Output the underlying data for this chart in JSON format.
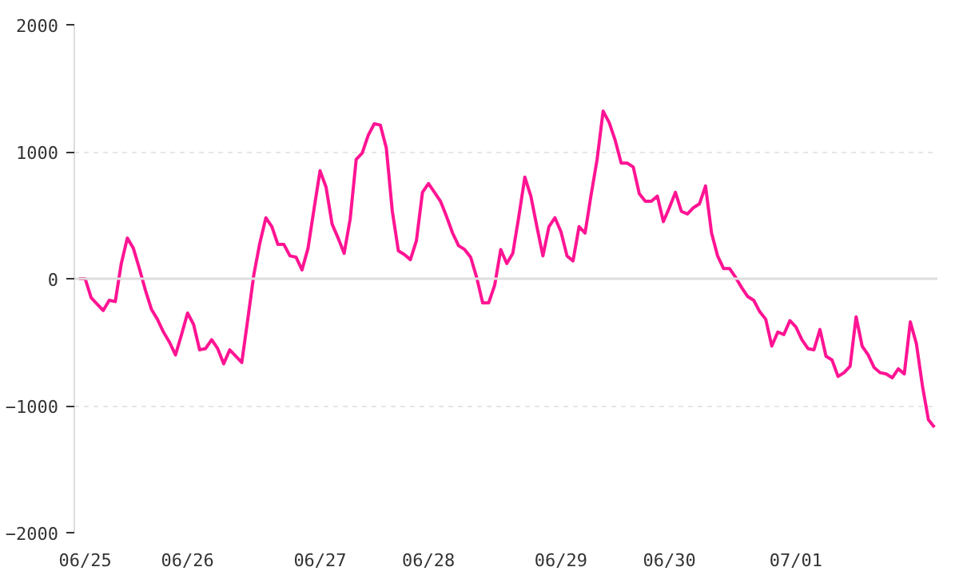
{
  "chart_data": {
    "type": "line",
    "categories": [
      null,
      "06/25",
      null,
      null,
      null,
      null,
      null,
      null,
      null,
      null,
      null,
      null,
      null,
      null,
      null,
      null,
      null,
      null,
      "06/26",
      null,
      null,
      null,
      null,
      null,
      null,
      null,
      null,
      null,
      null,
      null,
      null,
      null,
      null,
      null,
      null,
      null,
      null,
      null,
      null,
      null,
      "06/27",
      null,
      null,
      null,
      null,
      null,
      null,
      null,
      null,
      null,
      null,
      null,
      null,
      null,
      null,
      null,
      null,
      null,
      "06/28",
      null,
      null,
      null,
      null,
      null,
      null,
      null,
      null,
      null,
      null,
      null,
      null,
      null,
      null,
      null,
      null,
      null,
      null,
      null,
      null,
      null,
      "06/29",
      null,
      null,
      null,
      null,
      null,
      null,
      null,
      null,
      null,
      null,
      null,
      null,
      null,
      null,
      null,
      null,
      null,
      "06/30",
      null,
      null,
      null,
      null,
      null,
      null,
      null,
      null,
      null,
      null,
      null,
      null,
      null,
      null,
      null,
      null,
      null,
      null,
      null,
      null,
      "07/01",
      null,
      null,
      null,
      null,
      null,
      null,
      null,
      null,
      null,
      null,
      null,
      null,
      null,
      null,
      null,
      null,
      null,
      null,
      null,
      null,
      null,
      null,
      null
    ],
    "series": [
      {
        "color": "#ff1493",
        "values": [
          0,
          0,
          -150,
          -200,
          -250,
          -170,
          -180,
          120,
          320,
          240,
          80,
          -90,
          -240,
          -320,
          -420,
          -500,
          -600,
          -440,
          -270,
          -360,
          -560,
          -550,
          -480,
          -550,
          -670,
          -560,
          -610,
          -660,
          -320,
          30,
          280,
          480,
          410,
          270,
          270,
          180,
          170,
          70,
          240,
          550,
          850,
          720,
          430,
          320,
          200,
          470,
          940,
          990,
          1130,
          1220,
          1210,
          1030,
          530,
          220,
          190,
          150,
          300,
          680,
          750,
          680,
          610,
          490,
          360,
          260,
          230,
          170,
          10,
          -190,
          -190,
          -50,
          230,
          120,
          200,
          490,
          800,
          650,
          410,
          180,
          410,
          480,
          370,
          180,
          140,
          410,
          360,
          660,
          940,
          1320,
          1230,
          1090,
          910,
          910,
          880,
          670,
          610,
          610,
          650,
          450,
          560,
          680,
          530,
          510,
          560,
          590,
          730,
          360,
          180,
          80,
          80,
          10,
          -70,
          -140,
          -170,
          -260,
          -320,
          -530,
          -420,
          -440,
          -330,
          -380,
          -480,
          -550,
          -560,
          -400,
          -610,
          -640,
          -770,
          -740,
          -690,
          -300,
          -530,
          -600,
          -700,
          -740,
          -750,
          -780,
          -710,
          -750,
          -340,
          -510,
          -840,
          -1110,
          -1170
        ]
      }
    ],
    "ylim": [
      -2000,
      2000
    ],
    "yticks": [
      -2000,
      -1000,
      0,
      1000,
      2000
    ],
    "grid": "y",
    "ref_lines": [
      {
        "axis": "y",
        "value": 0,
        "color": "#dddddd"
      }
    ],
    "marker": "none",
    "line_style": "solid"
  }
}
